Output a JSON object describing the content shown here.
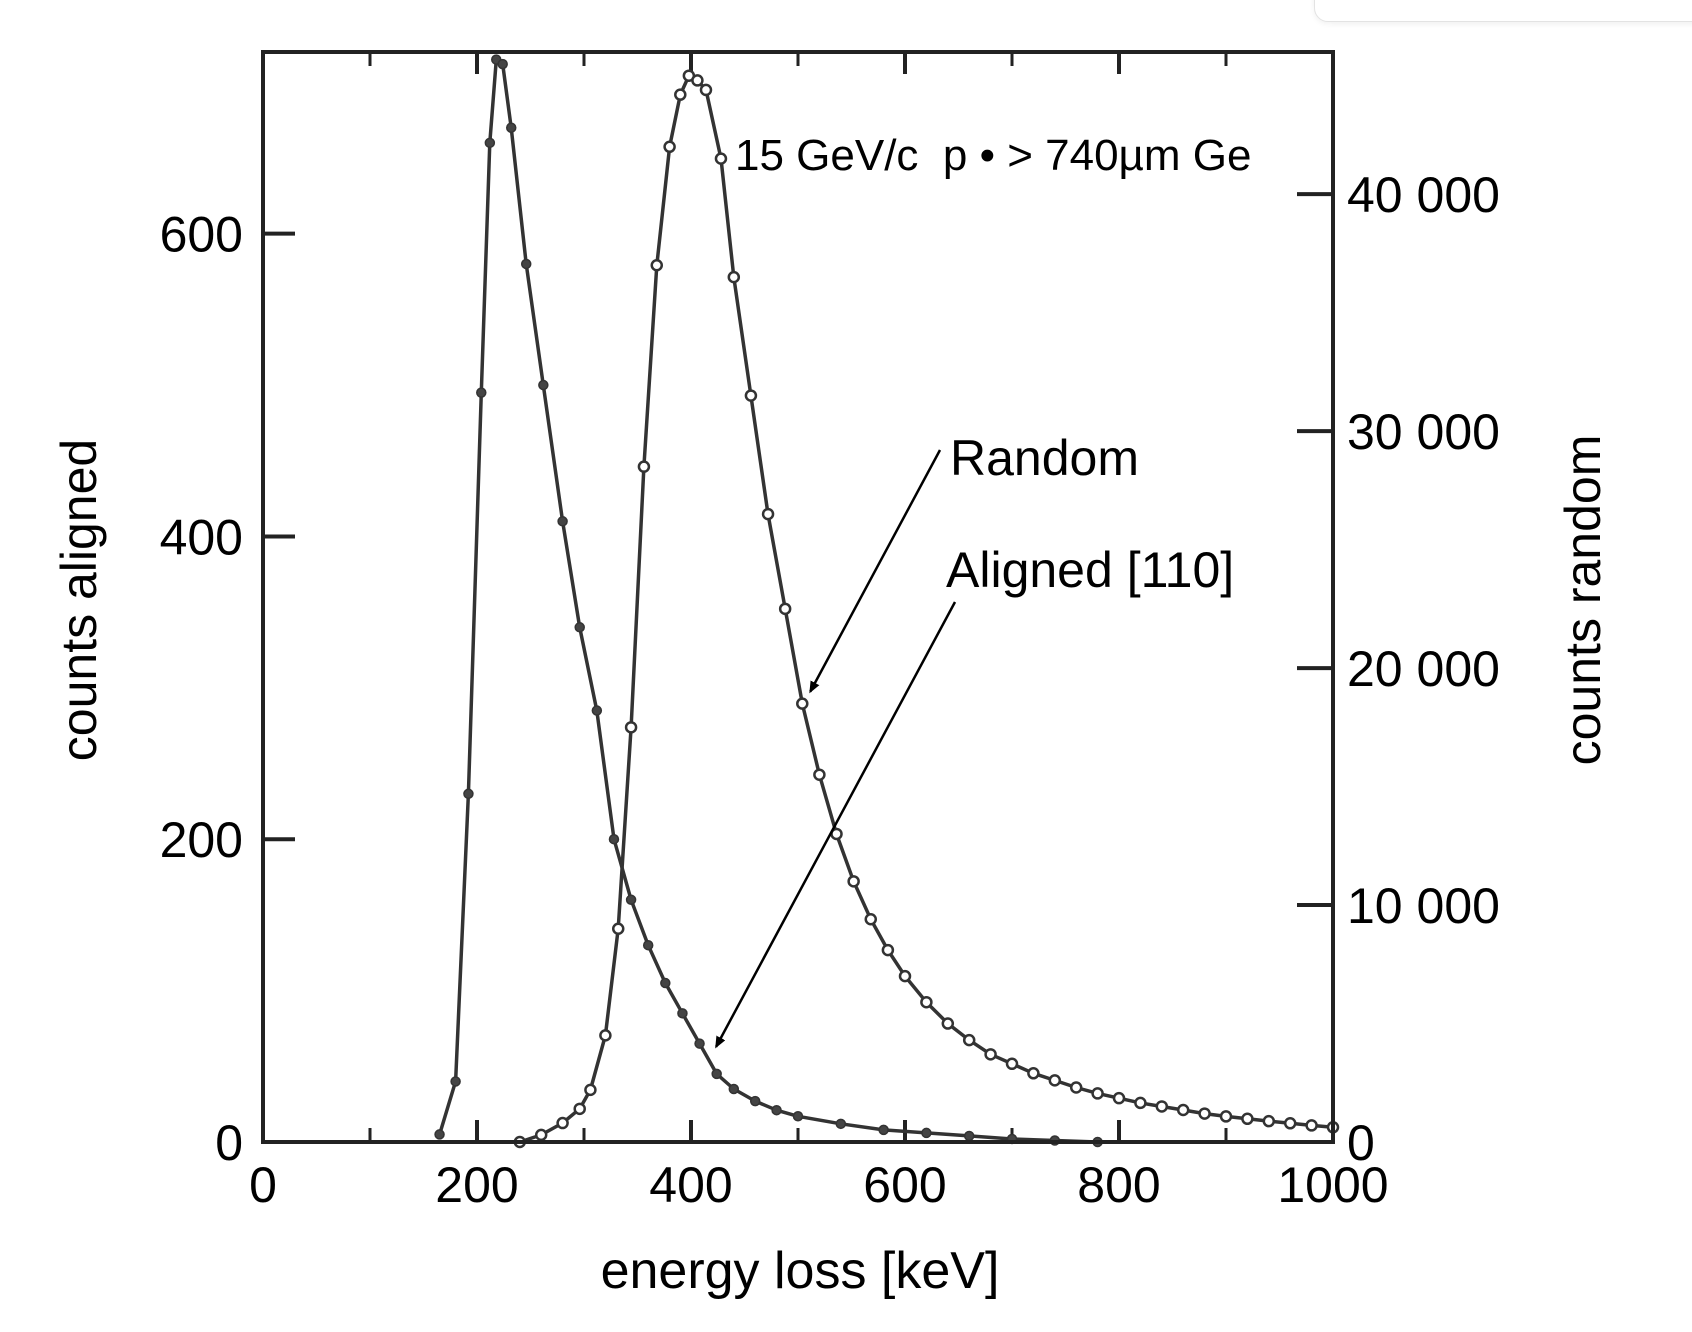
{
  "chart_data": {
    "type": "line",
    "xlabel": "energy loss [keV]",
    "ylabel_left": "counts aligned",
    "ylabel_right": "counts random",
    "annotation": "15 GeV/c  p • > 740µm Ge",
    "xlim": [
      0,
      1000
    ],
    "ylim_left": [
      0,
      720
    ],
    "ylim_right": [
      0,
      46000
    ],
    "x_ticks": [
      "0",
      "200",
      "400",
      "600",
      "800",
      "1000"
    ],
    "y_left_ticks": [
      "0",
      "200",
      "400",
      "600"
    ],
    "y_right_ticks": [
      "0",
      "10 000",
      "20 000",
      "30 000",
      "40 000"
    ],
    "grid": false,
    "series": [
      {
        "name": "Aligned [110]",
        "axis": "left",
        "marker": "filled-dot",
        "x": [
          165,
          180,
          192,
          204,
          212,
          218,
          224,
          232,
          246,
          262,
          280,
          296,
          312,
          328,
          344,
          360,
          376,
          392,
          408,
          424,
          440,
          460,
          480,
          500,
          540,
          580,
          620,
          660,
          700,
          740,
          780
        ],
        "y": [
          5,
          40,
          230,
          495,
          660,
          715,
          712,
          670,
          580,
          500,
          410,
          340,
          285,
          200,
          160,
          130,
          105,
          85,
          65,
          45,
          35,
          27,
          21,
          17,
          12,
          8,
          6,
          4,
          2,
          1,
          0
        ]
      },
      {
        "name": "Random",
        "axis": "right",
        "marker": "open-circle",
        "x": [
          240,
          260,
          280,
          296,
          306,
          320,
          332,
          344,
          356,
          368,
          380,
          390,
          398,
          406,
          414,
          428,
          440,
          456,
          472,
          488,
          504,
          520,
          536,
          552,
          568,
          584,
          600,
          620,
          640,
          660,
          680,
          700,
          720,
          740,
          760,
          780,
          800,
          820,
          840,
          860,
          880,
          900,
          920,
          940,
          960,
          980,
          1000
        ],
        "y": [
          0,
          300,
          800,
          1400,
          2200,
          4500,
          9000,
          17500,
          28500,
          37000,
          42000,
          44200,
          45000,
          44800,
          44400,
          41500,
          36500,
          31500,
          26500,
          22500,
          18500,
          15500,
          13000,
          11000,
          9400,
          8100,
          7000,
          5900,
          5000,
          4300,
          3700,
          3300,
          2900,
          2600,
          2300,
          2050,
          1850,
          1650,
          1500,
          1350,
          1200,
          1080,
          980,
          880,
          790,
          700,
          620
        ]
      }
    ],
    "callouts": [
      {
        "label": "Random",
        "target_series": "Random",
        "target_x": 504
      },
      {
        "label": "Aligned [110]",
        "target_series": "Aligned [110]",
        "target_x": 416
      }
    ]
  }
}
